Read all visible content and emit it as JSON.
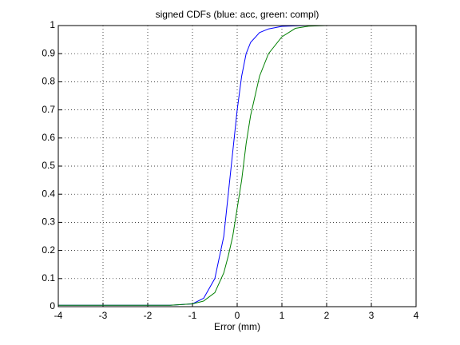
{
  "chart_data": {
    "type": "line",
    "title": "signed CDFs (blue: acc, green: compl)",
    "x_label": "Error (mm)",
    "x": [
      -4,
      -1.5,
      -1,
      -0.75,
      -0.5,
      -0.3,
      -0.2,
      -0.1,
      0,
      0.1,
      0.2,
      0.3,
      0.5,
      0.7,
      1,
      1.3,
      1.6,
      2,
      4
    ],
    "series": [
      {
        "color": "#0000ff",
        "values": [
          0.005,
          0.005,
          0.01,
          0.03,
          0.1,
          0.25,
          0.4,
          0.55,
          0.7,
          0.82,
          0.9,
          0.94,
          0.975,
          0.988,
          0.997,
          0.999,
          1,
          1,
          1
        ]
      },
      {
        "color": "#008000",
        "values": [
          0.005,
          0.005,
          0.01,
          0.02,
          0.05,
          0.12,
          0.18,
          0.25,
          0.35,
          0.45,
          0.58,
          0.68,
          0.82,
          0.9,
          0.96,
          0.99,
          0.998,
          1,
          1
        ]
      }
    ],
    "xlim": [
      -4,
      4
    ],
    "xticks": [
      -4,
      -3,
      -2,
      -1,
      0,
      1,
      2,
      3,
      4
    ],
    "ylim": [
      0,
      1
    ],
    "yticks": [
      0,
      0.1,
      0.2,
      0.3,
      0.4,
      0.5,
      0.6,
      0.7,
      0.8,
      0.9,
      1
    ],
    "grid": true
  }
}
